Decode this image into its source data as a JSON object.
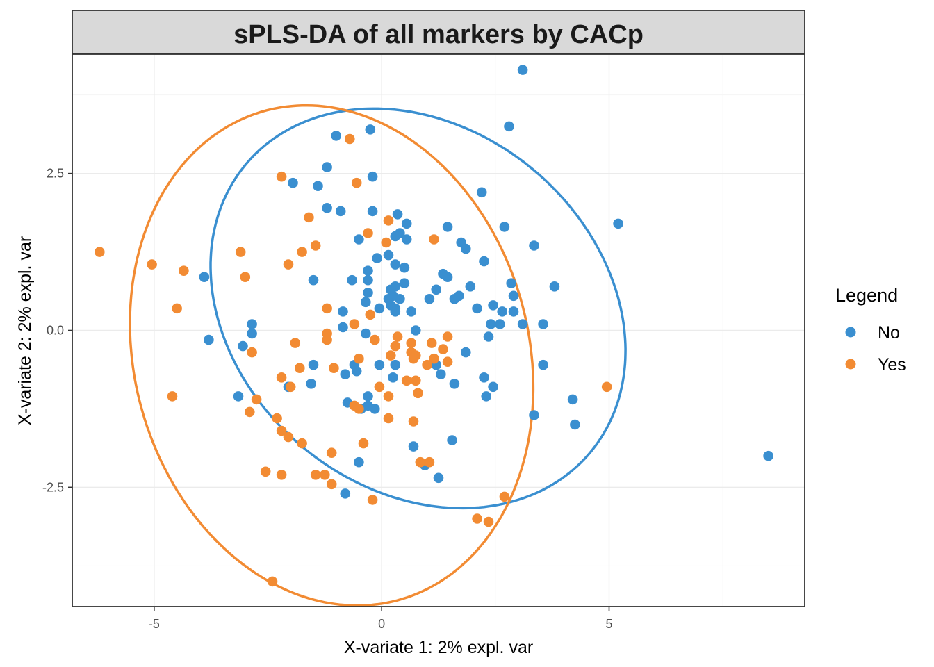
{
  "chart_data": {
    "type": "scatter",
    "title": "sPLS-DA of all markers by CACp",
    "xlabel": "X-variate 1: 2% expl. var",
    "ylabel": "X-variate 2: 2% expl. var",
    "xlim": [
      -6.8,
      9.3
    ],
    "ylim": [
      -4.4,
      4.4
    ],
    "x_ticks": [
      -5,
      0,
      5
    ],
    "x_tick_labels": [
      "-5",
      "0",
      "5"
    ],
    "y_ticks": [
      -2.5,
      0,
      2.5
    ],
    "y_tick_labels": [
      "-2.5",
      "0.0",
      "2.5"
    ],
    "grid": true,
    "legend": {
      "title": "Legend",
      "position": "right"
    },
    "series": [
      {
        "name": "No",
        "color": "#3a8fd0",
        "points": [
          [
            3.1,
            4.15
          ],
          [
            2.8,
            3.25
          ],
          [
            -0.25,
            3.2
          ],
          [
            -1.0,
            3.1
          ],
          [
            -1.2,
            2.6
          ],
          [
            -0.2,
            2.45
          ],
          [
            -1.4,
            2.3
          ],
          [
            -1.95,
            2.35
          ],
          [
            2.2,
            2.2
          ],
          [
            -1.2,
            1.95
          ],
          [
            -0.9,
            1.9
          ],
          [
            -0.2,
            1.9
          ],
          [
            0.35,
            1.85
          ],
          [
            5.2,
            1.7
          ],
          [
            0.55,
            1.7
          ],
          [
            1.45,
            1.65
          ],
          [
            2.7,
            1.65
          ],
          [
            0.4,
            1.55
          ],
          [
            0.3,
            1.5
          ],
          [
            0.55,
            1.45
          ],
          [
            -0.5,
            1.45
          ],
          [
            1.75,
            1.4
          ],
          [
            3.35,
            1.35
          ],
          [
            1.85,
            1.3
          ],
          [
            0.15,
            1.2
          ],
          [
            -0.1,
            1.15
          ],
          [
            2.25,
            1.1
          ],
          [
            0.3,
            1.05
          ],
          [
            0.5,
            1.0
          ],
          [
            -0.3,
            0.95
          ],
          [
            1.35,
            0.9
          ],
          [
            1.45,
            0.85
          ],
          [
            -3.9,
            0.85
          ],
          [
            -1.5,
            0.8
          ],
          [
            -0.65,
            0.8
          ],
          [
            -0.3,
            0.8
          ],
          [
            0.5,
            0.75
          ],
          [
            2.85,
            0.75
          ],
          [
            3.8,
            0.7
          ],
          [
            0.3,
            0.7
          ],
          [
            0.2,
            0.65
          ],
          [
            1.95,
            0.7
          ],
          [
            1.2,
            0.65
          ],
          [
            -0.3,
            0.6
          ],
          [
            0.25,
            0.55
          ],
          [
            0.15,
            0.5
          ],
          [
            1.7,
            0.55
          ],
          [
            1.6,
            0.5
          ],
          [
            0.4,
            0.5
          ],
          [
            1.05,
            0.5
          ],
          [
            2.9,
            0.55
          ],
          [
            -0.35,
            0.45
          ],
          [
            0.2,
            0.4
          ],
          [
            2.45,
            0.4
          ],
          [
            0.3,
            0.35
          ],
          [
            -0.85,
            0.3
          ],
          [
            0.65,
            0.3
          ],
          [
            2.1,
            0.35
          ],
          [
            2.9,
            0.3
          ],
          [
            2.65,
            0.3
          ],
          [
            0.3,
            0.3
          ],
          [
            -0.05,
            0.35
          ],
          [
            3.55,
            0.1
          ],
          [
            3.1,
            0.1
          ],
          [
            -2.85,
            0.1
          ],
          [
            2.4,
            0.1
          ],
          [
            2.6,
            0.1
          ],
          [
            -0.85,
            0.05
          ],
          [
            0.75,
            0.0
          ],
          [
            -2.85,
            -0.05
          ],
          [
            2.35,
            -0.1
          ],
          [
            -0.35,
            -0.05
          ],
          [
            -3.8,
            -0.15
          ],
          [
            -3.05,
            -0.25
          ],
          [
            1.85,
            -0.35
          ],
          [
            3.55,
            -0.55
          ],
          [
            -1.5,
            -0.55
          ],
          [
            -0.6,
            -0.55
          ],
          [
            -0.05,
            -0.55
          ],
          [
            0.3,
            -0.55
          ],
          [
            1.2,
            -0.55
          ],
          [
            1.3,
            -0.7
          ],
          [
            -0.55,
            -0.65
          ],
          [
            -0.8,
            -0.7
          ],
          [
            0.25,
            -0.75
          ],
          [
            2.25,
            -0.75
          ],
          [
            -1.55,
            -0.85
          ],
          [
            1.6,
            -0.85
          ],
          [
            2.45,
            -0.9
          ],
          [
            -2.05,
            -0.9
          ],
          [
            2.3,
            -1.05
          ],
          [
            -0.3,
            -1.05
          ],
          [
            -3.15,
            -1.05
          ],
          [
            4.2,
            -1.1
          ],
          [
            -0.75,
            -1.15
          ],
          [
            -0.3,
            -1.2
          ],
          [
            -0.45,
            -1.25
          ],
          [
            -0.15,
            -1.25
          ],
          [
            3.35,
            -1.35
          ],
          [
            4.25,
            -1.5
          ],
          [
            1.55,
            -1.75
          ],
          [
            0.7,
            -1.85
          ],
          [
            8.5,
            -2.0
          ],
          [
            -0.5,
            -2.1
          ],
          [
            0.95,
            -2.15
          ],
          [
            1.25,
            -2.35
          ],
          [
            -0.8,
            -2.6
          ]
        ]
      },
      {
        "name": "Yes",
        "color": "#f28b33",
        "points": [
          [
            -0.7,
            3.05
          ],
          [
            -2.2,
            2.45
          ],
          [
            -0.55,
            2.35
          ],
          [
            -1.6,
            1.8
          ],
          [
            0.15,
            1.75
          ],
          [
            -0.3,
            1.55
          ],
          [
            1.15,
            1.45
          ],
          [
            -1.45,
            1.35
          ],
          [
            -3.1,
            1.25
          ],
          [
            -1.75,
            1.25
          ],
          [
            -6.2,
            1.25
          ],
          [
            0.1,
            1.4
          ],
          [
            -5.05,
            1.05
          ],
          [
            -2.05,
            1.05
          ],
          [
            -4.35,
            0.95
          ],
          [
            -3.0,
            0.85
          ],
          [
            -4.5,
            0.35
          ],
          [
            -1.2,
            0.35
          ],
          [
            -0.25,
            0.25
          ],
          [
            -0.6,
            0.1
          ],
          [
            -1.2,
            -0.05
          ],
          [
            -1.2,
            -0.15
          ],
          [
            0.35,
            -0.1
          ],
          [
            1.45,
            -0.1
          ],
          [
            -0.15,
            -0.15
          ],
          [
            1.1,
            -0.2
          ],
          [
            0.65,
            -0.2
          ],
          [
            -1.9,
            -0.2
          ],
          [
            0.3,
            -0.25
          ],
          [
            1.35,
            -0.3
          ],
          [
            0.65,
            -0.35
          ],
          [
            -2.85,
            -0.35
          ],
          [
            0.2,
            -0.4
          ],
          [
            0.75,
            -0.4
          ],
          [
            0.7,
            -0.45
          ],
          [
            -0.5,
            -0.45
          ],
          [
            1.15,
            -0.45
          ],
          [
            1.45,
            -0.5
          ],
          [
            1.0,
            -0.55
          ],
          [
            -1.05,
            -0.6
          ],
          [
            -1.8,
            -0.6
          ],
          [
            -0.05,
            -0.9
          ],
          [
            -2.2,
            -0.75
          ],
          [
            -2.0,
            -0.9
          ],
          [
            0.55,
            -0.8
          ],
          [
            0.75,
            -0.8
          ],
          [
            4.95,
            -0.9
          ],
          [
            0.8,
            -1.0
          ],
          [
            0.15,
            -1.05
          ],
          [
            -4.6,
            -1.05
          ],
          [
            -2.75,
            -1.1
          ],
          [
            -0.6,
            -1.2
          ],
          [
            -0.5,
            -1.25
          ],
          [
            -2.9,
            -1.3
          ],
          [
            -2.3,
            -1.4
          ],
          [
            0.15,
            -1.4
          ],
          [
            0.7,
            -1.45
          ],
          [
            -2.2,
            -1.6
          ],
          [
            -2.05,
            -1.7
          ],
          [
            -1.75,
            -1.8
          ],
          [
            -0.4,
            -1.8
          ],
          [
            -1.1,
            -1.95
          ],
          [
            0.85,
            -2.1
          ],
          [
            1.05,
            -2.1
          ],
          [
            -2.55,
            -2.25
          ],
          [
            -1.45,
            -2.3
          ],
          [
            -2.2,
            -2.3
          ],
          [
            -1.25,
            -2.3
          ],
          [
            -1.1,
            -2.45
          ],
          [
            2.7,
            -2.65
          ],
          [
            -0.2,
            -2.7
          ],
          [
            2.1,
            -3.0
          ],
          [
            2.35,
            -3.05
          ],
          [
            -2.4,
            -4.0
          ]
        ]
      }
    ],
    "ellipses": [
      {
        "series": "No",
        "center": [
          0.8,
          0.35
        ],
        "rx": 4.65,
        "ry": 3.05,
        "rotation_deg": -15
      },
      {
        "series": "Yes",
        "center": [
          -1.1,
          -0.4
        ],
        "rx": 4.55,
        "ry": 3.85,
        "rotation_deg": -25
      }
    ]
  }
}
